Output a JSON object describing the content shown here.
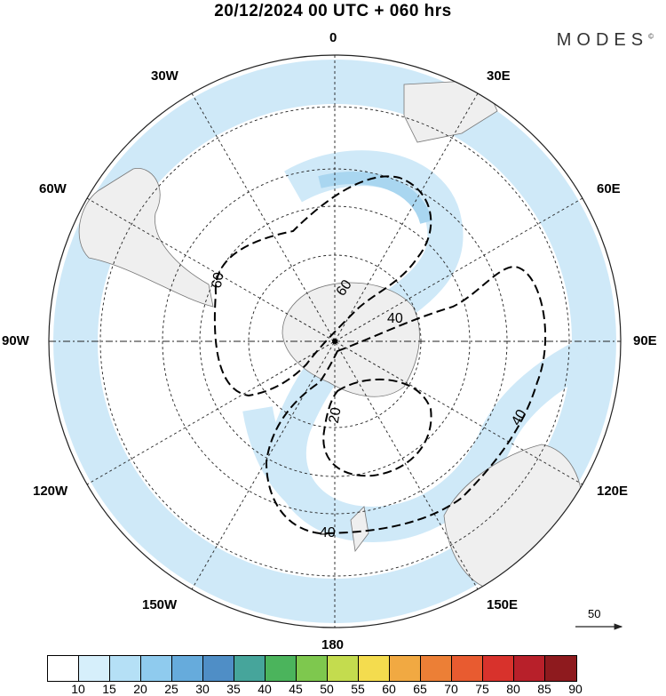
{
  "title": "20/12/2024  00 UTC  + 060 hrs",
  "brand": "MODES",
  "brand_mark": "©",
  "longitude_labels": {
    "n0": "0",
    "e30": "30E",
    "e60": "60E",
    "e90": "90E",
    "e120": "120E",
    "e150": "150E",
    "s180": "180",
    "w150": "150W",
    "w120": "120W",
    "w90": "90W",
    "w60": "60W",
    "w30": "30W"
  },
  "contour_labels": [
    "60",
    "60",
    "40",
    "40",
    "40",
    "20"
  ],
  "reference_vector": {
    "label": "50"
  },
  "colorbar": {
    "ticks": [
      "10",
      "15",
      "20",
      "25",
      "30",
      "35",
      "40",
      "45",
      "50",
      "55",
      "60",
      "65",
      "70",
      "75",
      "80",
      "85",
      "90"
    ],
    "colors": [
      "#ffffff",
      "#d6effb",
      "#b5e0f6",
      "#8fcbee",
      "#66abdc",
      "#4f8ec6",
      "#46a59b",
      "#4bb45c",
      "#7ec84e",
      "#c4dc4e",
      "#f4dc4e",
      "#f1a942",
      "#ec7f36",
      "#e85b30",
      "#d8322c",
      "#b8202a",
      "#8e1a1e"
    ]
  },
  "colors": {
    "shading": "#cfe9f8",
    "shading_strong": "#a9d6f0",
    "land": "#efefef"
  }
}
